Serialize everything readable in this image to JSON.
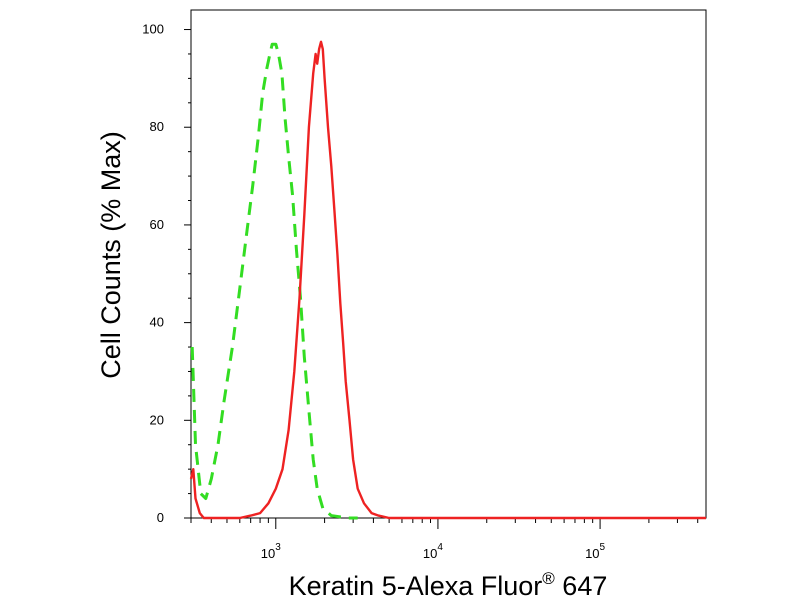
{
  "chart_data": {
    "type": "line",
    "title": "",
    "xlabel": "Keratin 5-Alexa Fluor",
    "xlabel_superscript": "®",
    "xlabel_suffix": " 647",
    "ylabel": "Cell Counts (% Max)",
    "x_scale": "log",
    "xlim": [
      300,
      450000
    ],
    "ylim": [
      0,
      104
    ],
    "y_ticks": [
      0,
      20,
      40,
      60,
      80,
      100
    ],
    "x_major_ticks": [
      1000,
      10000,
      100000
    ],
    "x_tick_labels": [
      {
        "base": "10",
        "exp": "3"
      },
      {
        "base": "10",
        "exp": "4"
      },
      {
        "base": "10",
        "exp": "5"
      }
    ],
    "grid": false,
    "legend": "none",
    "series": [
      {
        "style": "dashed",
        "color": "#33dd22",
        "points": [
          [
            305,
            35
          ],
          [
            320,
            15
          ],
          [
            345,
            5
          ],
          [
            370,
            4
          ],
          [
            400,
            8
          ],
          [
            440,
            15
          ],
          [
            480,
            24
          ],
          [
            540,
            35
          ],
          [
            600,
            47
          ],
          [
            660,
            58
          ],
          [
            720,
            68
          ],
          [
            780,
            78
          ],
          [
            830,
            87
          ],
          [
            880,
            92
          ],
          [
            920,
            95
          ],
          [
            950,
            97
          ],
          [
            1000,
            97
          ],
          [
            1040,
            95
          ],
          [
            1090,
            91
          ],
          [
            1140,
            82
          ],
          [
            1200,
            74
          ],
          [
            1270,
            66
          ],
          [
            1340,
            55
          ],
          [
            1420,
            45
          ],
          [
            1500,
            33
          ],
          [
            1600,
            22
          ],
          [
            1700,
            12
          ],
          [
            1800,
            6
          ],
          [
            1950,
            2
          ],
          [
            2200,
            0.5
          ],
          [
            2800,
            0
          ],
          [
            3200,
            0
          ]
        ]
      },
      {
        "style": "solid",
        "color": "#ee2222",
        "points": [
          [
            300,
            8
          ],
          [
            310,
            10
          ],
          [
            320,
            4
          ],
          [
            340,
            1
          ],
          [
            360,
            0
          ],
          [
            420,
            0
          ],
          [
            500,
            0
          ],
          [
            600,
            0
          ],
          [
            700,
            0.5
          ],
          [
            800,
            1
          ],
          [
            900,
            3
          ],
          [
            1000,
            6
          ],
          [
            1100,
            10
          ],
          [
            1200,
            18
          ],
          [
            1300,
            30
          ],
          [
            1400,
            45
          ],
          [
            1500,
            62
          ],
          [
            1600,
            80
          ],
          [
            1700,
            91
          ],
          [
            1760,
            95
          ],
          [
            1800,
            93
          ],
          [
            1850,
            96
          ],
          [
            1900,
            97.5
          ],
          [
            1950,
            96
          ],
          [
            2000,
            90
          ],
          [
            2100,
            80
          ],
          [
            2200,
            72
          ],
          [
            2300,
            63
          ],
          [
            2400,
            54
          ],
          [
            2500,
            44
          ],
          [
            2600,
            36
          ],
          [
            2700,
            28
          ],
          [
            2850,
            20
          ],
          [
            3000,
            12
          ],
          [
            3200,
            6
          ],
          [
            3500,
            3
          ],
          [
            3900,
            1
          ],
          [
            4300,
            0.5
          ],
          [
            5000,
            0
          ],
          [
            8000,
            0
          ],
          [
            20000,
            0
          ],
          [
            60000,
            0
          ],
          [
            200000,
            0
          ],
          [
            450000,
            0
          ]
        ]
      }
    ]
  }
}
